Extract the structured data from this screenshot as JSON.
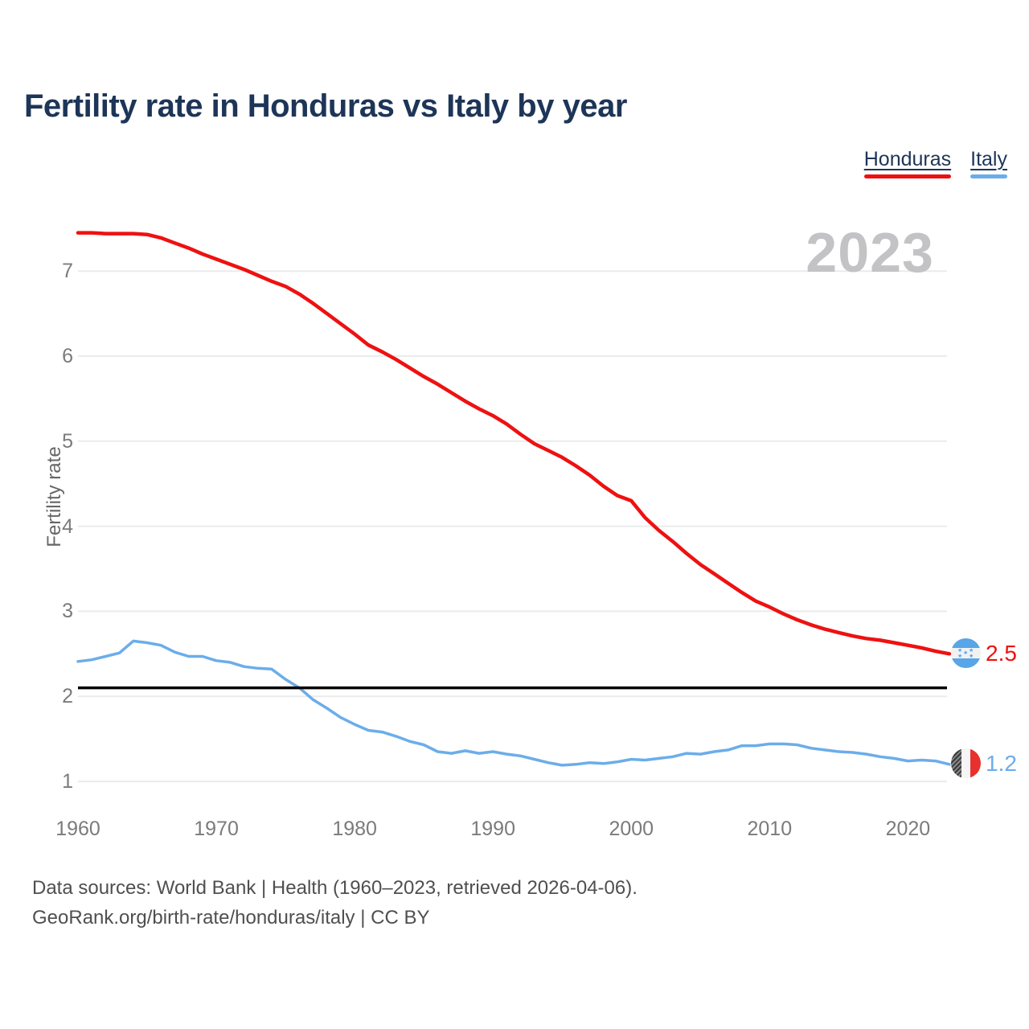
{
  "title": "Fertility rate in Honduras vs Italy by year",
  "legend": {
    "items": [
      {
        "label": "Honduras",
        "color": "#ee1111"
      },
      {
        "label": "Italy",
        "color": "#6badea"
      }
    ]
  },
  "watermark_year": "2023",
  "y_axis_title": "Fertility rate",
  "end_labels": {
    "honduras": {
      "value": "2.5",
      "color": "#ee1111",
      "flag": "honduras-flag"
    },
    "italy": {
      "value": "1.2",
      "color": "#6badea",
      "flag": "italy-flag"
    }
  },
  "footer": {
    "line1": "Data sources: World Bank | Health (1960–2023, retrieved 2026-04-06).",
    "line2": "GeoRank.org/birth-rate/honduras/italy | CC BY"
  },
  "chart_data": {
    "type": "line",
    "title": "Fertility rate in Honduras vs Italy by year",
    "xlabel": "",
    "ylabel": "Fertility rate",
    "xlim": [
      1960,
      2023
    ],
    "ylim": [
      0.55,
      7.55
    ],
    "grid": true,
    "legend_position": "top-right",
    "xticks": [
      1960,
      1970,
      1980,
      1990,
      2000,
      2010,
      2020
    ],
    "yticks": [
      1,
      2,
      3,
      4,
      5,
      6,
      7
    ],
    "reference_line": {
      "value": 2.1,
      "color": "#000000"
    },
    "x": [
      1960,
      1961,
      1962,
      1963,
      1964,
      1965,
      1966,
      1967,
      1968,
      1969,
      1970,
      1971,
      1972,
      1973,
      1974,
      1975,
      1976,
      1977,
      1978,
      1979,
      1980,
      1981,
      1982,
      1983,
      1984,
      1985,
      1986,
      1987,
      1988,
      1989,
      1990,
      1991,
      1992,
      1993,
      1994,
      1995,
      1996,
      1997,
      1998,
      1999,
      2000,
      2001,
      2002,
      2003,
      2004,
      2005,
      2006,
      2007,
      2008,
      2009,
      2010,
      2011,
      2012,
      2013,
      2014,
      2015,
      2016,
      2017,
      2018,
      2019,
      2020,
      2021,
      2022,
      2023
    ],
    "series": [
      {
        "name": "Honduras",
        "color": "#ee1111",
        "final_value": 2.5,
        "values": [
          7.45,
          7.45,
          7.44,
          7.44,
          7.44,
          7.43,
          7.39,
          7.33,
          7.27,
          7.2,
          7.14,
          7.08,
          7.02,
          6.95,
          6.88,
          6.82,
          6.73,
          6.62,
          6.5,
          6.38,
          6.26,
          6.13,
          6.05,
          5.96,
          5.86,
          5.76,
          5.67,
          5.57,
          5.47,
          5.38,
          5.3,
          5.2,
          5.08,
          4.97,
          4.89,
          4.81,
          4.71,
          4.6,
          4.47,
          4.36,
          4.3,
          4.1,
          3.95,
          3.82,
          3.68,
          3.55,
          3.44,
          3.33,
          3.22,
          3.12,
          3.05,
          2.97,
          2.9,
          2.84,
          2.79,
          2.75,
          2.71,
          2.68,
          2.66,
          2.63,
          2.6,
          2.57,
          2.53,
          2.5
        ]
      },
      {
        "name": "Italy",
        "color": "#6badea",
        "final_value": 1.2,
        "values": [
          2.41,
          2.43,
          2.47,
          2.51,
          2.65,
          2.63,
          2.6,
          2.52,
          2.47,
          2.47,
          2.42,
          2.4,
          2.35,
          2.33,
          2.32,
          2.2,
          2.1,
          1.96,
          1.86,
          1.75,
          1.67,
          1.6,
          1.58,
          1.53,
          1.47,
          1.43,
          1.35,
          1.33,
          1.36,
          1.33,
          1.35,
          1.32,
          1.3,
          1.26,
          1.22,
          1.19,
          1.2,
          1.22,
          1.21,
          1.23,
          1.26,
          1.25,
          1.27,
          1.29,
          1.33,
          1.32,
          1.35,
          1.37,
          1.42,
          1.42,
          1.44,
          1.44,
          1.43,
          1.39,
          1.37,
          1.35,
          1.34,
          1.32,
          1.29,
          1.27,
          1.24,
          1.25,
          1.24,
          1.2
        ]
      }
    ]
  }
}
